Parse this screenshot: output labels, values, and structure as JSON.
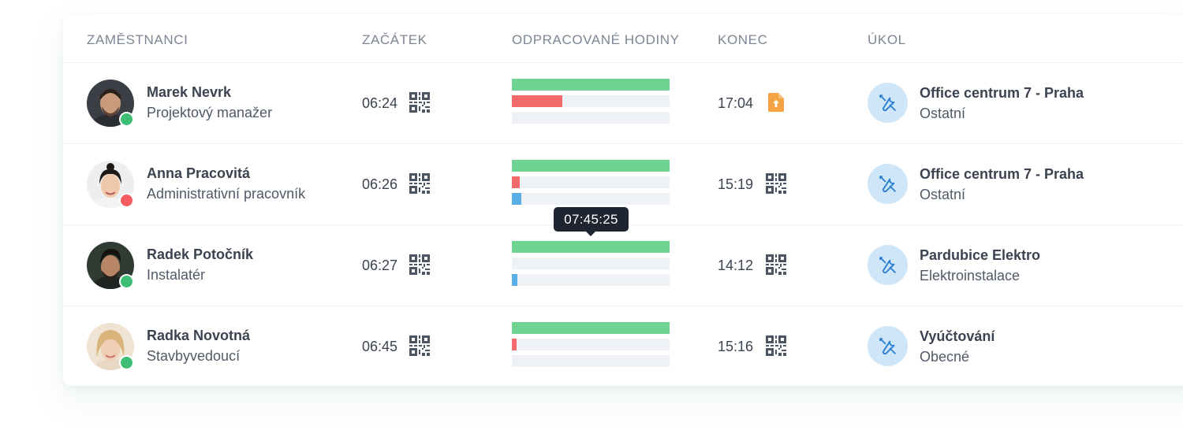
{
  "header": {
    "employees": "ZAMĚSTNANCI",
    "start": "ZAČÁTEK",
    "hours": "ODPRACOVANÉ HODINY",
    "end": "KONEC",
    "task": "ÚKOL"
  },
  "colors": {
    "bar_green": "#6fd492",
    "bar_red": "#f46a6a",
    "bar_blue": "#5aaee6",
    "online": "#3dbe74",
    "offline": "#f45c62",
    "upload_orange": "#f5a444",
    "task_icon_bg": "#cfe6f8"
  },
  "rows": [
    {
      "name": "Marek Nevrk",
      "role": "Projektový manažer",
      "status": "online",
      "start": "06:24",
      "start_icon": "qr-code-icon",
      "bars": {
        "green": 1.0,
        "red": 0.32,
        "blue": 0.0
      },
      "end": "17:04",
      "end_icon": "upload-file-icon",
      "task_name": "Office centrum 7 - Praha",
      "task_category": "Ostatní",
      "task_icon": "tools-icon"
    },
    {
      "name": "Anna Pracovitá",
      "role": "Administrativní pracovník",
      "status": "offline",
      "start": "06:26",
      "start_icon": "qr-code-icon",
      "bars": {
        "green": 1.0,
        "red": 0.05,
        "blue": 0.06
      },
      "end": "15:19",
      "end_icon": "qr-code-icon",
      "task_name": "Office centrum 7 - Praha",
      "task_category": "Ostatní",
      "task_icon": "tools-icon"
    },
    {
      "name": "Radek Potočník",
      "role": "Instalatér",
      "status": "online",
      "start": "06:27",
      "start_icon": "qr-code-icon",
      "bars": {
        "green": 1.0,
        "red": 0.0,
        "blue": 0.035
      },
      "end": "14:12",
      "end_icon": "qr-code-icon",
      "task_name": "Pardubice Elektro",
      "task_category": "Elektroinstalace",
      "task_icon": "tools-icon"
    },
    {
      "name": "Radka Novotná",
      "role": "Stavbyvedoucí",
      "status": "online",
      "start": "06:45",
      "start_icon": "qr-code-icon",
      "bars": {
        "green": 1.0,
        "red": 0.03,
        "blue": 0.0
      },
      "end": "15:16",
      "end_icon": "qr-code-icon",
      "task_name": "Vyúčtování",
      "task_category": "Obecné",
      "task_icon": "tools-icon"
    }
  ],
  "tooltip": {
    "text": "07:45:25"
  }
}
